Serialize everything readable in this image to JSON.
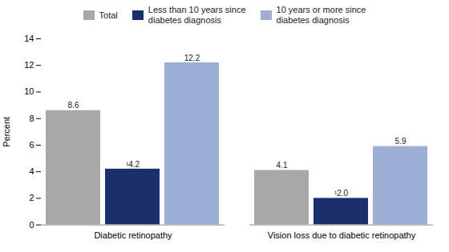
{
  "chart_data": {
    "type": "bar",
    "categories": [
      "Diabetic retinopathy",
      "Vision loss due to diabetic retinopathy"
    ],
    "series": [
      {
        "name": "Total",
        "color": "#a8a8a8",
        "values": [
          8.6,
          4.1
        ],
        "value_labels": [
          "8.6",
          "4.1"
        ]
      },
      {
        "name": "Less than 10 years since\ndiabetes diagnosis",
        "color": "#1b2f6b",
        "values": [
          4.2,
          2.0
        ],
        "value_labels": [
          "¹4.2",
          "¹2.0"
        ]
      },
      {
        "name": "10 years or more since\ndiabetes diagnosis",
        "color": "#9dafd4",
        "values": [
          12.2,
          5.9
        ],
        "value_labels": [
          "12.2",
          "5.9"
        ]
      }
    ],
    "ylabel": "Percent",
    "ylim": [
      0,
      14
    ],
    "yticks": [
      0,
      2,
      4,
      6,
      8,
      10,
      12,
      14
    ],
    "grid": false,
    "legend": "top",
    "data_labels": true
  }
}
